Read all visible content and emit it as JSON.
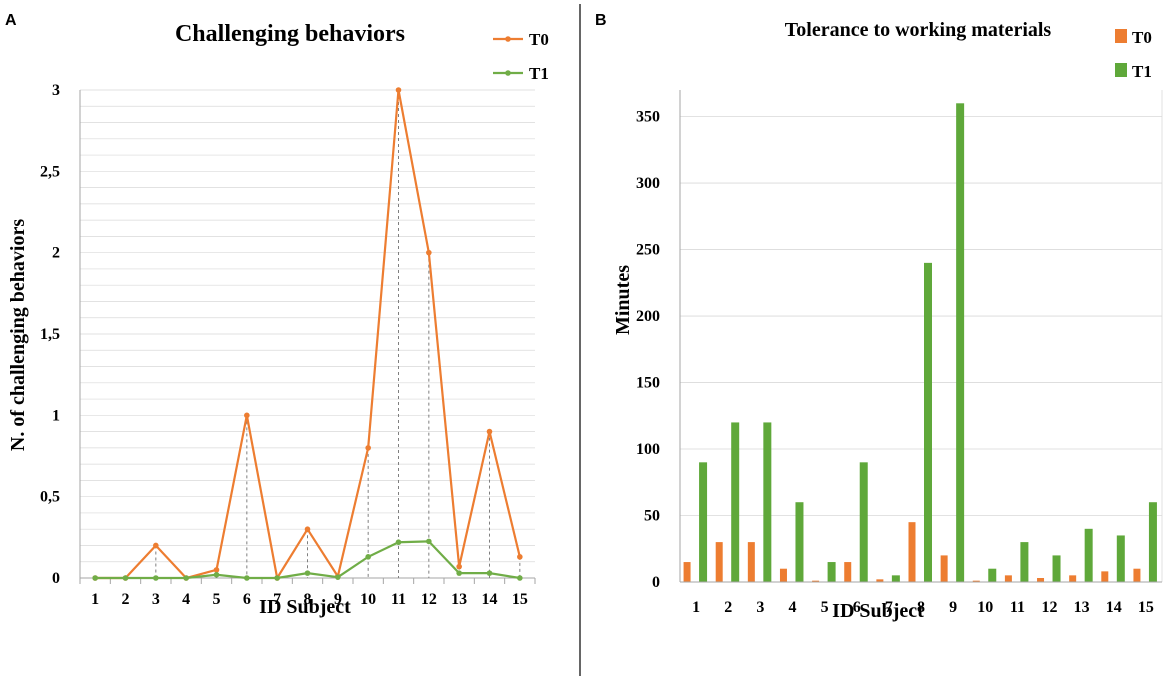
{
  "panels": {
    "a_label": "A",
    "b_label": "B"
  },
  "colors": {
    "t0": "#ED7D31",
    "t1": "#70AD47",
    "t1_bar": "#5FA83A",
    "grid": "#D9D9D9",
    "axis": "#A6A6A6",
    "divider": "#000000",
    "drop": "#7F7F7F"
  },
  "chart_data": [
    {
      "type": "line",
      "title": "Challenging behaviors",
      "xlabel": "ID Subject",
      "ylabel": "N. of challenging behaviors",
      "categories": [
        "1",
        "2",
        "3",
        "4",
        "5",
        "6",
        "7",
        "8",
        "9",
        "10",
        "11",
        "12",
        "13",
        "14",
        "15"
      ],
      "ylim": [
        0,
        3
      ],
      "yticks": [
        0,
        0.5,
        1,
        1.5,
        2,
        2.5,
        3
      ],
      "ytick_labels": [
        "0",
        "0,5",
        "1",
        "1,5",
        "2",
        "2,5",
        "3"
      ],
      "minor_grid_step": 0.1,
      "legend": "top-right",
      "drop_lines": true,
      "series": [
        {
          "name": "T0",
          "values": [
            0,
            0,
            0.2,
            0,
            0.05,
            1,
            0,
            0.3,
            0.01,
            0.8,
            3,
            2,
            0.07,
            0.9,
            0.13
          ]
        },
        {
          "name": "T1",
          "values": [
            0,
            0,
            0,
            0,
            0.02,
            0,
            0,
            0.03,
            0.005,
            0.13,
            0.22,
            0.225,
            0.03,
            0.03,
            0
          ]
        }
      ]
    },
    {
      "type": "bar",
      "title": "Tolerance to working materials",
      "xlabel": "ID Subject",
      "ylabel": "Minutes",
      "categories": [
        "1",
        "2",
        "3",
        "4",
        "5",
        "6",
        "7",
        "8",
        "9",
        "10",
        "11",
        "12",
        "13",
        "14",
        "15"
      ],
      "ylim": [
        0,
        370
      ],
      "yticks": [
        0,
        50,
        100,
        150,
        200,
        250,
        300,
        350
      ],
      "ytick_labels": [
        "0",
        "50",
        "100",
        "150",
        "200",
        "250",
        "300",
        "350"
      ],
      "legend": "top-right",
      "series": [
        {
          "name": "T0",
          "values": [
            15,
            30,
            30,
            10,
            1,
            15,
            2,
            45,
            20,
            1,
            5,
            3,
            5,
            8,
            10
          ]
        },
        {
          "name": "T1",
          "values": [
            90,
            120,
            120,
            60,
            15,
            90,
            5,
            240,
            360,
            10,
            30,
            20,
            40,
            35,
            60
          ]
        }
      ]
    }
  ]
}
